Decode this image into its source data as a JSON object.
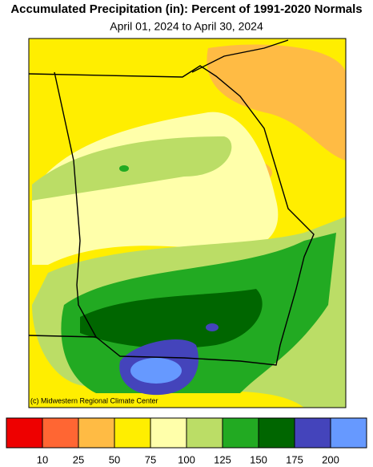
{
  "title": "Accumulated Precipitation (in): Percent of 1991-2020 Normals",
  "subtitle": "April 01, 2024 to April 30, 2024",
  "credit": "(c) Midwestern Regional Climate Center",
  "legend": {
    "colors": [
      "#ee0000",
      "#ff6633",
      "#ffbb44",
      "#ffee00",
      "#ffffaa",
      "#bbdd66",
      "#22aa22",
      "#006600",
      "#4444bb",
      "#6699ff"
    ],
    "ticks": [
      10,
      25,
      50,
      75,
      100,
      125,
      150,
      175,
      200
    ]
  }
}
